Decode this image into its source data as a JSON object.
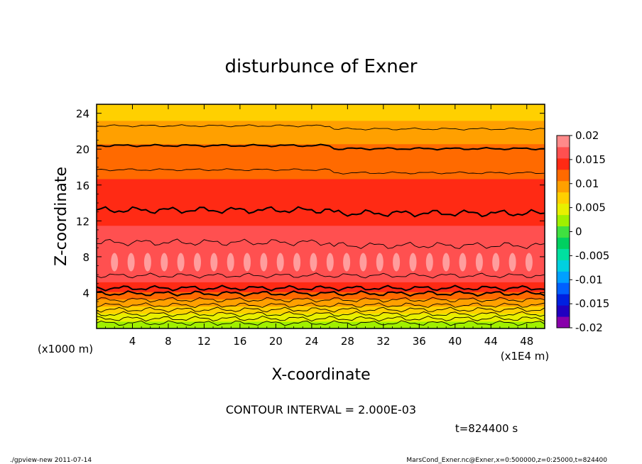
{
  "chart_data": {
    "type": "heatmap",
    "title": "disturbunce of Exner",
    "xlabel": "X-coordinate",
    "ylabel": "Z-coordinate",
    "x_unit_label": "(x1E4 m)",
    "y_unit_label": "(x1000 m)",
    "xlim": [
      0,
      50
    ],
    "ylim": [
      0,
      25
    ],
    "x_ticks": [
      4,
      8,
      12,
      16,
      20,
      24,
      28,
      32,
      36,
      40,
      44,
      48
    ],
    "y_ticks": [
      4,
      8,
      12,
      16,
      20,
      24
    ],
    "x_tick_labels": [
      "4",
      "8",
      "12",
      "16",
      "20",
      "24",
      "28",
      "32",
      "36",
      "40",
      "44",
      "48"
    ],
    "y_tick_labels": [
      "4",
      "8",
      "12",
      "16",
      "20",
      "24"
    ],
    "contour_interval_text": "CONTOUR INTERVAL = 2.000E-03",
    "time_text": "t=824400 s",
    "colorbar": {
      "labels": [
        "0.02",
        "0.015",
        "0.01",
        "0.005",
        "0",
        "-0.005",
        "-0.01",
        "-0.015",
        "-0.02"
      ],
      "levels": [
        -0.02,
        -0.0175,
        -0.015,
        -0.0125,
        -0.01,
        -0.0075,
        -0.005,
        -0.0025,
        0,
        0.0025,
        0.005,
        0.0075,
        0.01,
        0.0125,
        0.015,
        0.0175,
        0.02
      ],
      "colors": [
        "#8800aa",
        "#2000c0",
        "#0020e0",
        "#0060ff",
        "#00a0ff",
        "#00d0e0",
        "#00e0a0",
        "#00d060",
        "#40e040",
        "#a0f000",
        "#e8f000",
        "#ffd000",
        "#ffa000",
        "#ff6a00",
        "#ff2a14",
        "#ff5050",
        "#ff8a8a"
      ]
    },
    "profile": {
      "z": [
        0,
        1,
        2,
        3,
        4,
        5,
        6,
        7,
        8,
        9,
        10,
        11,
        12,
        13,
        14,
        15,
        16,
        17,
        18,
        19,
        20,
        21,
        22,
        23,
        24,
        25
      ],
      "value": [
        0.0022,
        0.0055,
        0.0085,
        0.0115,
        0.0148,
        0.0172,
        0.0185,
        0.0195,
        0.02,
        0.0192,
        0.0185,
        0.0178,
        0.0172,
        0.0162,
        0.0158,
        0.0155,
        0.0152,
        0.0149,
        0.0142,
        0.0136,
        0.013,
        0.0122,
        0.0112,
        0.0102,
        0.009,
        0.0082
      ]
    },
    "contour_lines_z": [
      0.6,
      1.1,
      1.6,
      2.1,
      2.6,
      3.2,
      3.9,
      4.5,
      5.9,
      9.6,
      13.2,
      17.7,
      20.4,
      22.6
    ]
  },
  "footer": {
    "left": "./gpview-new   2011-07-14",
    "right": "MarsCond_Exner.nc@Exner,x=0:500000,z=0:25000,t=824400"
  }
}
